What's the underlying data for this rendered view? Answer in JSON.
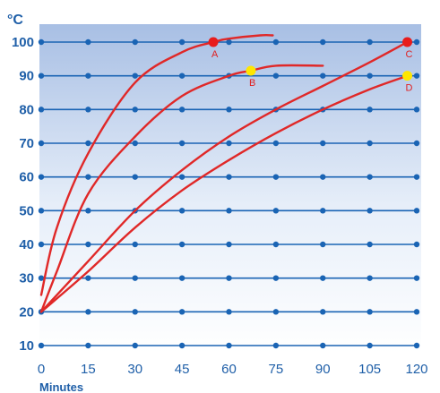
{
  "chart_data": {
    "type": "line",
    "ylabel": "°C",
    "xlabel": "Minutes",
    "xlim": [
      0,
      120
    ],
    "ylim": [
      10,
      100
    ],
    "x_ticks": [
      "0",
      "15",
      "30",
      "45",
      "60",
      "75",
      "90",
      "105",
      "120"
    ],
    "y_ticks": [
      "10",
      "20",
      "30",
      "40",
      "50",
      "60",
      "70",
      "80",
      "90",
      "100"
    ],
    "grid": true,
    "series": [
      {
        "name": "",
        "x": [
          0,
          5,
          15,
          30,
          45,
          55,
          60,
          70,
          74
        ],
        "y": [
          25,
          45,
          67,
          88,
          97,
          100,
          101,
          102,
          102
        ]
      },
      {
        "name": "",
        "x": [
          0,
          5,
          15,
          30,
          45,
          60,
          67,
          75,
          90
        ],
        "y": [
          20,
          32,
          55,
          72,
          84,
          90,
          91.5,
          93,
          93
        ]
      },
      {
        "name": "",
        "x": [
          0,
          15,
          30,
          45,
          60,
          75,
          90,
          105,
          117
        ],
        "y": [
          20,
          35,
          50,
          62,
          72,
          80,
          87,
          94,
          100
        ]
      },
      {
        "name": "",
        "x": [
          0,
          15,
          30,
          45,
          60,
          75,
          90,
          105,
          117
        ],
        "y": [
          20,
          32,
          45,
          56,
          65,
          73,
          80,
          86,
          90
        ]
      }
    ],
    "points": [
      {
        "label": "A",
        "x": 55,
        "y": 100,
        "color": "#e81c1c"
      },
      {
        "label": "B",
        "x": 67,
        "y": 91.5,
        "color": "#ffe600"
      },
      {
        "label": "C",
        "x": 117,
        "y": 100,
        "color": "#e81c1c"
      },
      {
        "label": "D",
        "x": 117,
        "y": 90,
        "color": "#ffe600"
      }
    ],
    "colors": {
      "grid": "#1a64b4",
      "text": "#1f5fa8",
      "curve": "#e02828",
      "background_top": "#a8bfe4",
      "background_bottom": "#ffffff"
    }
  }
}
